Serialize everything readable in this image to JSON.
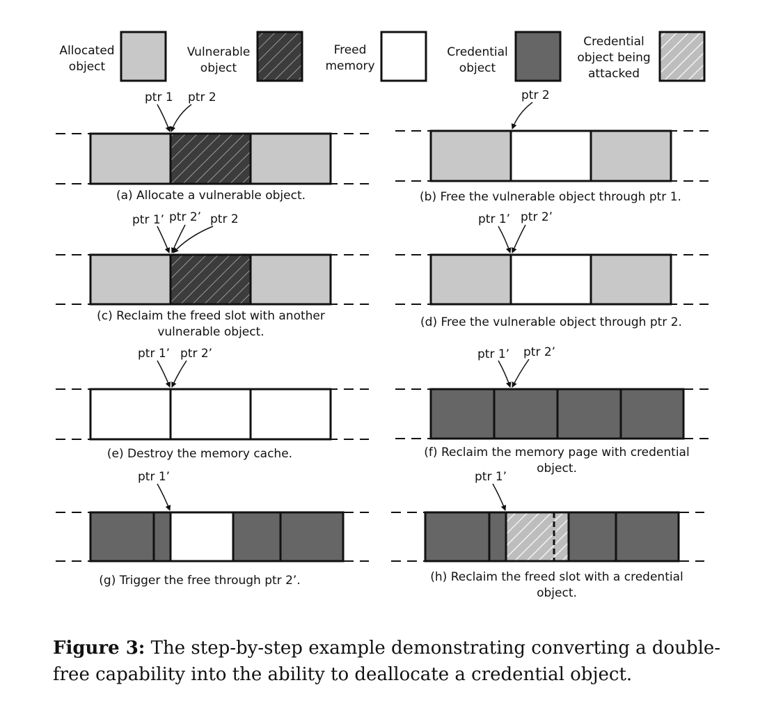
{
  "legend": {
    "allocated": [
      "Allocated",
      "object"
    ],
    "vulnerable": [
      "Vulnerable",
      "object"
    ],
    "freed": [
      "Freed",
      "memory"
    ],
    "credential": [
      "Credential",
      "object"
    ],
    "attacked": [
      "Credential",
      "object being",
      "attacked"
    ]
  },
  "panels": {
    "a": {
      "pointers": [
        "ptr 1",
        "ptr 2"
      ],
      "caption": [
        "(a) Allocate a vulnerable object."
      ]
    },
    "b": {
      "pointers": [
        "ptr 2"
      ],
      "caption": [
        "(b) Free the vulnerable object through ptr 1."
      ]
    },
    "c": {
      "pointers": [
        "ptr 1’",
        "ptr 2’",
        "ptr 2"
      ],
      "caption": [
        "(c) Reclaim the freed slot with another",
        "vulnerable object."
      ]
    },
    "d": {
      "pointers": [
        "ptr 1’",
        "ptr 2’"
      ],
      "caption": [
        "(d) Free the vulnerable object through ptr 2."
      ]
    },
    "e": {
      "pointers": [
        "ptr 1’",
        "ptr 2’"
      ],
      "caption": [
        "(e) Destroy the memory cache."
      ]
    },
    "f": {
      "pointers": [
        "ptr 1’",
        "ptr 2’"
      ],
      "caption": [
        "(f) Reclaim the memory page with credential",
        "object."
      ]
    },
    "g": {
      "pointers": [
        "ptr 1’"
      ],
      "caption": [
        "(g) Trigger the free through ptr 2’."
      ]
    },
    "h": {
      "pointers": [
        "ptr 1’"
      ],
      "caption": [
        "(h) Reclaim the freed slot with a credential",
        "object."
      ]
    }
  },
  "figure_caption": {
    "label": "Figure 3:",
    "text": "The step-by-step example demonstrating converting a double-free capability into the ability to deallocate a credential object."
  },
  "colors": {
    "allocated": "#c8c8c8",
    "vulnerable": "#3c3c3c",
    "freed": "#ffffff",
    "credential": "#666666",
    "attacked": "#c4c4c4",
    "outline": "#111111"
  }
}
